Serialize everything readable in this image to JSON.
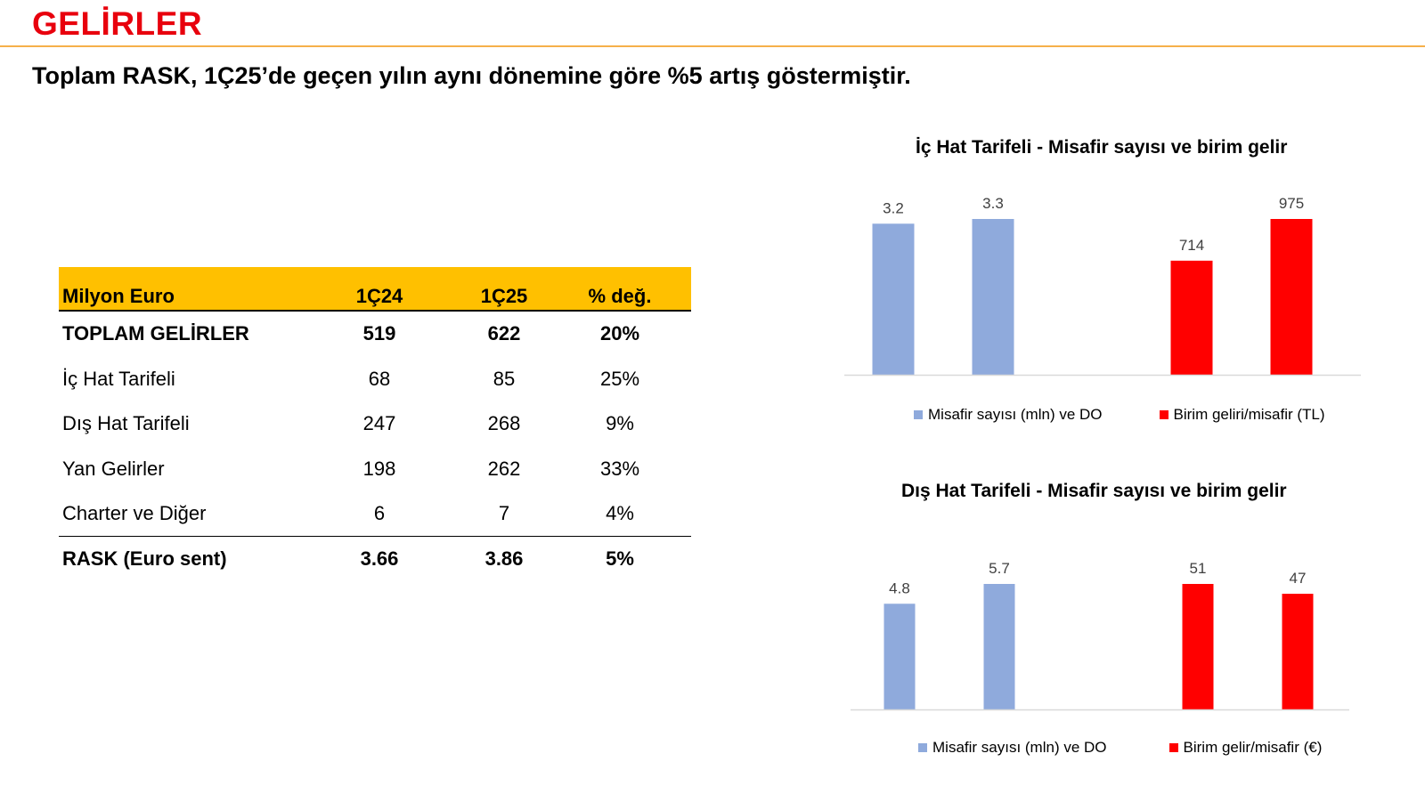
{
  "header": {
    "title": "GELİRLER",
    "headline": "Toplam RASK, 1Ç25’de geçen yılın aynı dönemine göre %5 artış göstermiştir."
  },
  "table": {
    "columns": [
      "Milyon Euro",
      "1Ç24",
      "1Ç25",
      "% değ."
    ],
    "rows": [
      {
        "label": "TOPLAM GELİRLER",
        "v1": "519",
        "v2": "622",
        "chg": "20%",
        "bold": true
      },
      {
        "label": "İç Hat Tarifeli",
        "v1": "68",
        "v2": "85",
        "chg": "25%",
        "bold": false
      },
      {
        "label": "Dış Hat Tarifeli",
        "v1": "247",
        "v2": "268",
        "chg": "9%",
        "bold": false
      },
      {
        "label": "Yan Gelirler",
        "v1": "198",
        "v2": "262",
        "chg": "33%",
        "bold": false
      },
      {
        "label": "Charter ve Diğer",
        "v1": "6",
        "v2": "7",
        "chg": "4%",
        "bold": false
      },
      {
        "label": "RASK (Euro sent)",
        "v1": "3.66",
        "v2": "3.86",
        "chg": "5%",
        "bold": true
      }
    ]
  },
  "chart_data": [
    {
      "type": "bar",
      "title": "İç Hat Tarifeli - Misafir sayısı ve birim gelir",
      "series": [
        {
          "name": "Misafir sayısı (mln) ve DO",
          "color": "#8faadc",
          "values": [
            3.2,
            3.3
          ],
          "labels": [
            "3.2",
            "3.3"
          ]
        },
        {
          "name": "Birim geliri/misafir (TL)",
          "color": "#ff0000",
          "values": [
            714,
            975
          ],
          "labels": [
            "714",
            "975"
          ]
        }
      ],
      "legend_position": "bottom"
    },
    {
      "type": "bar",
      "title": "Dış Hat Tarifeli - Misafir sayısı ve birim gelir",
      "series": [
        {
          "name": "Misafir sayısı (mln) ve DO",
          "color": "#8faadc",
          "values": [
            4.8,
            5.7
          ],
          "labels": [
            "4.8",
            "5.7"
          ]
        },
        {
          "name": "Birim gelir/misafir (€)",
          "color": "#ff0000",
          "values": [
            51,
            47
          ],
          "labels": [
            "51",
            "47"
          ]
        }
      ],
      "legend_position": "bottom"
    }
  ],
  "colors": {
    "title_red": "#e8000d",
    "table_header": "#ffc000",
    "rule_orange": "#f6b04a"
  }
}
